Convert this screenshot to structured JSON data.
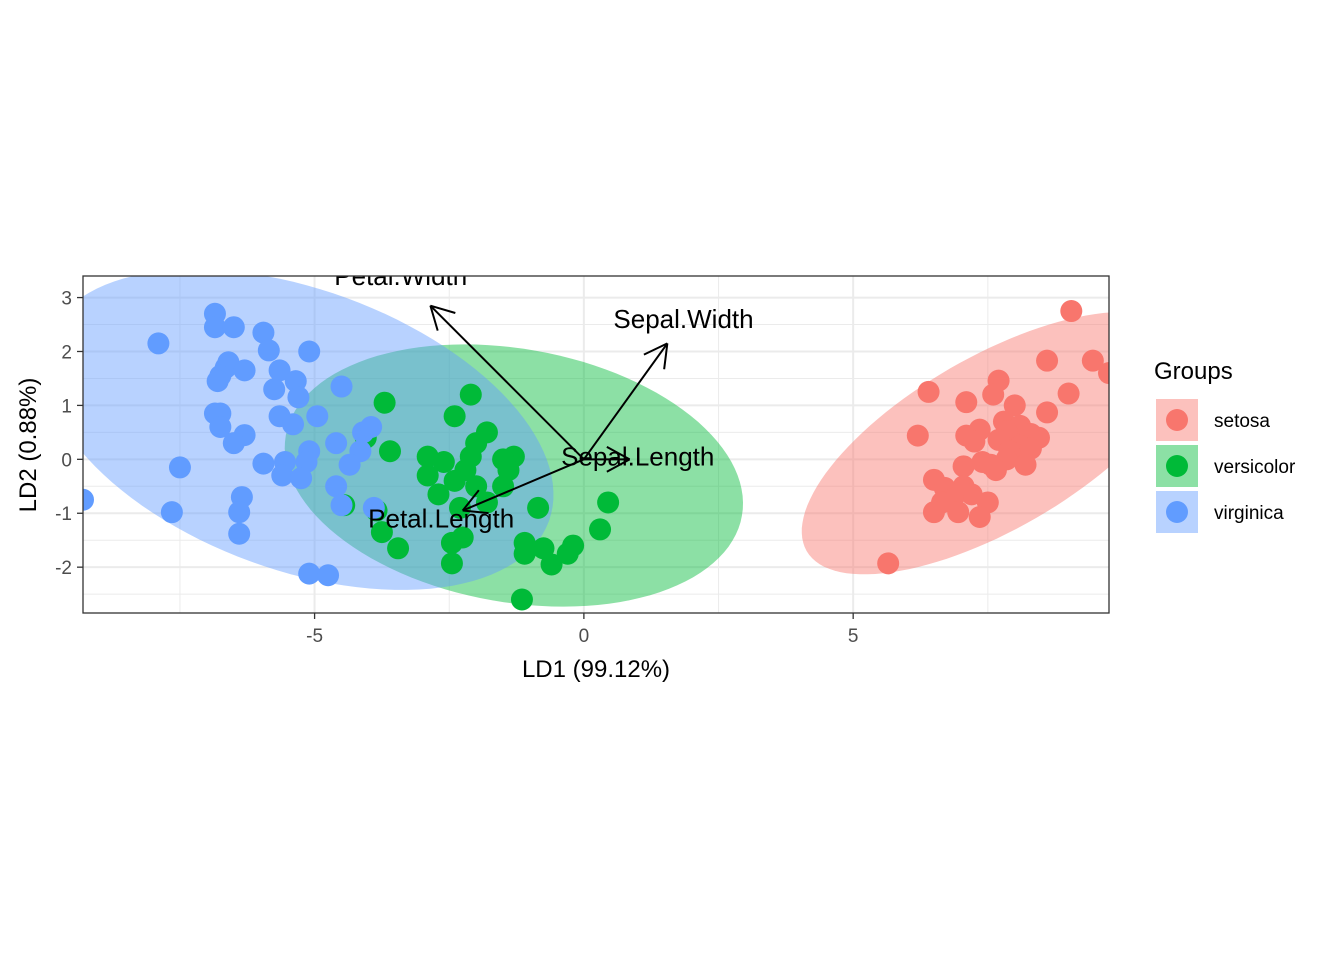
{
  "chart_data": {
    "type": "scatter",
    "title": "",
    "xlabel": "LD1 (99.12%)",
    "ylabel": "LD2 (0.88%)",
    "xlim": [
      -9.3,
      9.75
    ],
    "ylim": [
      -2.85,
      3.4
    ],
    "x_ticks": [
      -5,
      0,
      5
    ],
    "y_ticks": [
      -2,
      -1,
      0,
      1,
      2,
      3
    ],
    "x_tick_labels": [
      "-5",
      "0",
      "5"
    ],
    "y_tick_labels": [
      "-2",
      "-1",
      "0",
      "1",
      "2",
      "3"
    ],
    "grid": true,
    "legend": {
      "title": "Groups",
      "position": "right",
      "entries": [
        "setosa",
        "versicolor",
        "virginica"
      ]
    },
    "series": [
      {
        "name": "setosa",
        "color": "#F8766D",
        "ellipse": {
          "cx": 7.6,
          "cy": 0.3,
          "rx": 4.0,
          "ry": 1.6,
          "angle_deg": 30
        },
        "points": [
          [
            9.05,
            2.75
          ],
          [
            9.45,
            1.83
          ],
          [
            9.75,
            1.6
          ],
          [
            8.6,
            1.83
          ],
          [
            7.7,
            1.46
          ],
          [
            7.6,
            1.2
          ],
          [
            8.0,
            1.0
          ],
          [
            9.0,
            1.22
          ],
          [
            6.4,
            1.25
          ],
          [
            7.1,
            1.06
          ],
          [
            8.6,
            0.87
          ],
          [
            7.8,
            0.7
          ],
          [
            8.1,
            0.62
          ],
          [
            7.85,
            0.52
          ],
          [
            7.35,
            0.55
          ],
          [
            8.3,
            0.47
          ],
          [
            7.7,
            0.36
          ],
          [
            8.45,
            0.4
          ],
          [
            7.1,
            0.44
          ],
          [
            6.2,
            0.44
          ],
          [
            7.25,
            0.33
          ],
          [
            8.1,
            0.25
          ],
          [
            7.9,
            0.15
          ],
          [
            8.3,
            0.2
          ],
          [
            7.85,
            0.0
          ],
          [
            7.4,
            -0.05
          ],
          [
            7.55,
            -0.1
          ],
          [
            7.05,
            -0.13
          ],
          [
            8.2,
            -0.1
          ],
          [
            7.65,
            -0.2
          ],
          [
            6.5,
            -0.38
          ],
          [
            7.05,
            -0.5
          ],
          [
            6.7,
            -0.53
          ],
          [
            7.2,
            -0.65
          ],
          [
            6.85,
            -0.73
          ],
          [
            6.65,
            -0.8
          ],
          [
            7.5,
            -0.8
          ],
          [
            6.95,
            -0.98
          ],
          [
            6.5,
            -0.98
          ],
          [
            7.35,
            -1.07
          ],
          [
            5.65,
            -1.93
          ]
        ]
      },
      {
        "name": "versicolor",
        "color": "#00BA38",
        "ellipse": {
          "cx": -1.3,
          "cy": -0.3,
          "rx": 4.3,
          "ry": 2.35,
          "angle_deg": -10
        },
        "points": [
          [
            -2.1,
            1.2
          ],
          [
            -3.7,
            1.05
          ],
          [
            -2.4,
            0.8
          ],
          [
            -1.8,
            0.5
          ],
          [
            -2.0,
            0.3
          ],
          [
            -3.6,
            0.15
          ],
          [
            -2.9,
            0.05
          ],
          [
            -2.1,
            0.05
          ],
          [
            -1.3,
            0.05
          ],
          [
            -1.5,
            0.0
          ],
          [
            -2.6,
            -0.05
          ],
          [
            -2.2,
            -0.2
          ],
          [
            -1.4,
            -0.2
          ],
          [
            -2.9,
            -0.3
          ],
          [
            -2.4,
            -0.4
          ],
          [
            -2.0,
            -0.5
          ],
          [
            -1.5,
            -0.5
          ],
          [
            -2.7,
            -0.65
          ],
          [
            -1.8,
            -0.8
          ],
          [
            -2.3,
            -0.9
          ],
          [
            -0.85,
            -0.9
          ],
          [
            0.45,
            -0.8
          ],
          [
            -3.75,
            -1.35
          ],
          [
            -2.25,
            -1.45
          ],
          [
            -1.1,
            -1.55
          ],
          [
            -3.45,
            -1.65
          ],
          [
            -0.75,
            -1.65
          ],
          [
            -0.2,
            -1.6
          ],
          [
            -1.1,
            -1.75
          ],
          [
            -0.3,
            -1.75
          ],
          [
            0.3,
            -1.3
          ],
          [
            -0.6,
            -1.95
          ],
          [
            -2.45,
            -1.93
          ],
          [
            -2.45,
            -1.55
          ],
          [
            -1.15,
            -2.6
          ],
          [
            -4.45,
            -0.85
          ],
          [
            -3.85,
            -0.95
          ],
          [
            -4.05,
            0.4
          ]
        ]
      },
      {
        "name": "virginica",
        "color": "#619CFF",
        "ellipse": {
          "cx": -5.3,
          "cy": 0.55,
          "rx": 4.95,
          "ry": 2.6,
          "angle_deg": -20
        },
        "points": [
          [
            -6.85,
            2.7
          ],
          [
            -6.85,
            2.45
          ],
          [
            -6.5,
            2.45
          ],
          [
            -5.95,
            2.35
          ],
          [
            -7.9,
            2.15
          ],
          [
            -5.85,
            2.02
          ],
          [
            -5.1,
            2.0
          ],
          [
            -6.6,
            1.8
          ],
          [
            -6.65,
            1.7
          ],
          [
            -6.3,
            1.65
          ],
          [
            -5.65,
            1.65
          ],
          [
            -6.75,
            1.55
          ],
          [
            -6.8,
            1.45
          ],
          [
            -5.35,
            1.45
          ],
          [
            -5.75,
            1.3
          ],
          [
            -4.5,
            1.35
          ],
          [
            -5.3,
            1.15
          ],
          [
            -6.85,
            0.85
          ],
          [
            -6.75,
            0.85
          ],
          [
            -5.65,
            0.8
          ],
          [
            -4.95,
            0.8
          ],
          [
            -5.4,
            0.65
          ],
          [
            -6.75,
            0.6
          ],
          [
            -6.3,
            0.45
          ],
          [
            -4.1,
            0.5
          ],
          [
            -6.5,
            0.3
          ],
          [
            -4.6,
            0.3
          ],
          [
            -5.1,
            0.15
          ],
          [
            -4.15,
            0.15
          ],
          [
            -5.95,
            -0.08
          ],
          [
            -5.55,
            -0.05
          ],
          [
            -5.15,
            -0.05
          ],
          [
            -4.35,
            -0.1
          ],
          [
            -7.5,
            -0.15
          ],
          [
            -5.6,
            -0.3
          ],
          [
            -5.25,
            -0.35
          ],
          [
            -4.6,
            -0.5
          ],
          [
            -6.35,
            -0.7
          ],
          [
            -4.5,
            -0.85
          ],
          [
            -7.65,
            -0.98
          ],
          [
            -6.4,
            -0.98
          ],
          [
            -6.4,
            -1.38
          ],
          [
            -5.1,
            -2.12
          ],
          [
            -4.75,
            -2.15
          ],
          [
            -9.3,
            -0.75
          ],
          [
            -3.95,
            0.6
          ],
          [
            -3.9,
            -0.9
          ]
        ]
      }
    ],
    "arrows": [
      {
        "label": "Sepal.Width",
        "x": 1.55,
        "y": 2.15,
        "label_x": 1.85,
        "label_y": 2.6
      },
      {
        "label": "Petal.Width",
        "x": -2.85,
        "y": 2.85,
        "label_x": -3.4,
        "label_y": 3.4
      },
      {
        "label": "Sepal.Length",
        "x": 0.85,
        "y": 0.0,
        "label_x": 1.0,
        "label_y": 0.05
      },
      {
        "label": "Petal.Length",
        "x": -2.25,
        "y": -0.95,
        "label_x": -2.65,
        "label_y": -1.1
      }
    ]
  }
}
